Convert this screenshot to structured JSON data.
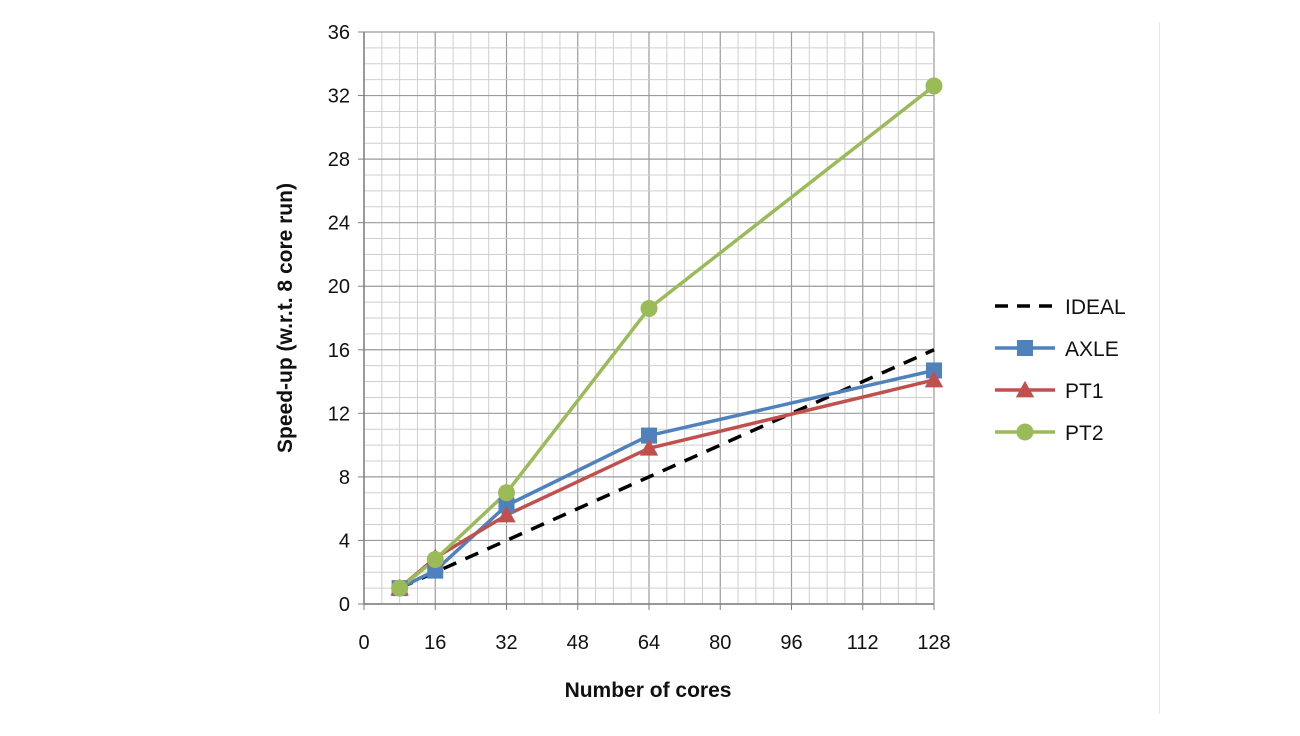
{
  "chart_data": {
    "type": "line",
    "xlabel": "Number of cores",
    "ylabel": "Speed-up (w.r.t. 8 core run)",
    "xlim": [
      0,
      128
    ],
    "ylim": [
      0,
      36
    ],
    "x_ticks": [
      0,
      16,
      32,
      48,
      64,
      80,
      96,
      112,
      128
    ],
    "y_ticks": [
      0,
      4,
      8,
      12,
      16,
      20,
      24,
      28,
      32,
      36
    ],
    "grid": true,
    "legend_position": "right",
    "series": [
      {
        "name": "IDEAL",
        "style": "dashed",
        "color": "#000000",
        "marker": "none",
        "x": [
          8,
          16,
          32,
          64,
          128
        ],
        "y": [
          1,
          2,
          4,
          8,
          16
        ]
      },
      {
        "name": "AXLE",
        "style": "solid",
        "color": "#4f81bd",
        "marker": "square",
        "x": [
          8,
          16,
          32,
          64,
          128
        ],
        "y": [
          1,
          2.1,
          6.2,
          10.6,
          14.7
        ]
      },
      {
        "name": "PT1",
        "style": "solid",
        "color": "#c0504d",
        "marker": "triangle",
        "x": [
          8,
          16,
          32,
          64,
          128
        ],
        "y": [
          1,
          2.9,
          5.6,
          9.8,
          14.1
        ]
      },
      {
        "name": "PT2",
        "style": "solid",
        "color": "#9bbb59",
        "marker": "circle",
        "x": [
          8,
          16,
          32,
          64,
          128
        ],
        "y": [
          1,
          2.8,
          7,
          18.6,
          32.6
        ]
      }
    ]
  }
}
